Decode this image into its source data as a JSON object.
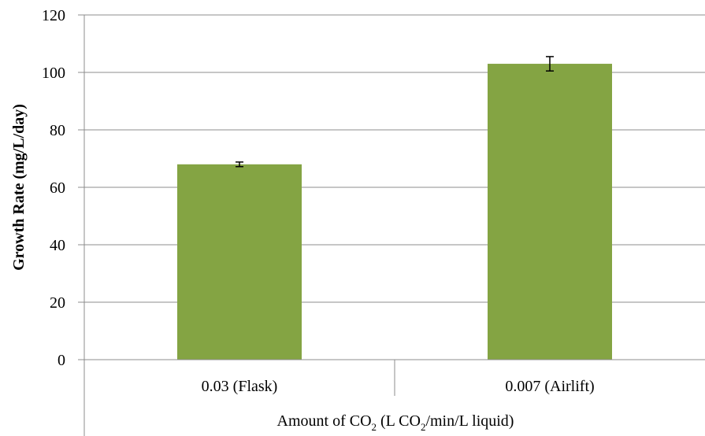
{
  "chart_data": {
    "type": "bar",
    "categories": [
      "0.03 (Flask)",
      "0.007 (Airlift)"
    ],
    "values": [
      68,
      103
    ],
    "errors": [
      0.8,
      2.5
    ],
    "yticks": [
      "0",
      "20",
      "40",
      "60",
      "80",
      "100",
      "120"
    ],
    "ylim": [
      0,
      120
    ],
    "ylabel": "Growth Rate (mg/L/day)",
    "xlabel": {
      "part1": "Amount of CO",
      "sub1": "2",
      "part2": " (L CO",
      "sub2": "2",
      "part3": "/min/L liquid)"
    },
    "grid": true,
    "bar_color": "#84a443",
    "grid_color": "#8c8c8c"
  }
}
